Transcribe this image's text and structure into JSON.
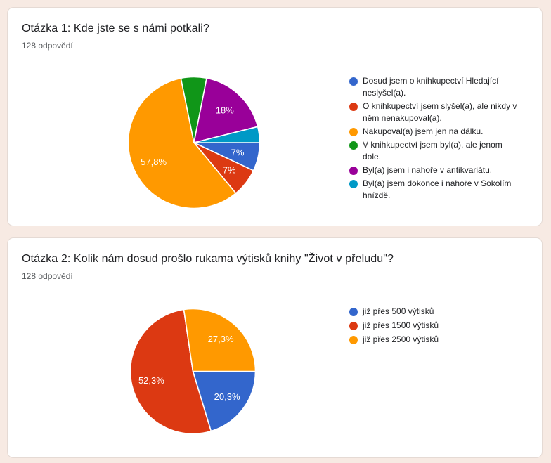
{
  "theme": {
    "page_background": "#F7EAE3",
    "card_background": "#FFFFFF",
    "card_border": "#E5DAD4",
    "title_color": "#202124",
    "subtitle_color": "#55585B",
    "pie_label_color": "#FFFFFF"
  },
  "chart_data": [
    {
      "type": "pie",
      "title": "Otázka 1: Kde jste se s námi potkali?",
      "subtitle": "128 odpovědí",
      "total_responses": 128,
      "legend_position": "right",
      "rotation_deg_clockwise_from_top": 90,
      "slices": [
        {
          "label": "Dosud jsem o knihkupectví Hledající neslyšel(a).",
          "pct": 7.0,
          "pct_label": "7%",
          "color": "#3366CC"
        },
        {
          "label": "O knihkupectví jsem slyšel(a), ale nikdy v něm nenakupoval(a).",
          "pct": 7.0,
          "pct_label": "7%",
          "color": "#DC3912"
        },
        {
          "label": "Nakupoval(a) jsem jen na dálku.",
          "pct": 57.8,
          "pct_label": "57,8%",
          "color": "#FF9900"
        },
        {
          "label": "V knihkupectví jsem byl(a), ale jenom dole.",
          "pct": 6.3,
          "pct_label": "",
          "color": "#109618"
        },
        {
          "label": "Byl(a) jsem i nahoře v antikvariátu.",
          "pct": 18.0,
          "pct_label": "18%",
          "color": "#990099"
        },
        {
          "label": "Byl(a) jsem dokonce i nahoře v Sokolím hnízdě.",
          "pct": 3.9,
          "pct_label": "",
          "color": "#0099C6"
        }
      ]
    },
    {
      "type": "pie",
      "title": "Otázka 2: Kolik nám dosud prošlo rukama výtisků knihy \"Život v přeludu\"?",
      "subtitle": "128 odpovědí",
      "total_responses": 128,
      "legend_position": "right",
      "rotation_deg_clockwise_from_top": 90,
      "slices": [
        {
          "label": "již přes 500 výtisků",
          "pct": 20.3,
          "pct_label": "20,3%",
          "color": "#3366CC"
        },
        {
          "label": "již přes 1500 výtisků",
          "pct": 52.3,
          "pct_label": "52,3%",
          "color": "#DC3912"
        },
        {
          "label": "již přes 2500 výtisků",
          "pct": 27.3,
          "pct_label": "27,3%",
          "color": "#FF9900"
        }
      ]
    }
  ]
}
